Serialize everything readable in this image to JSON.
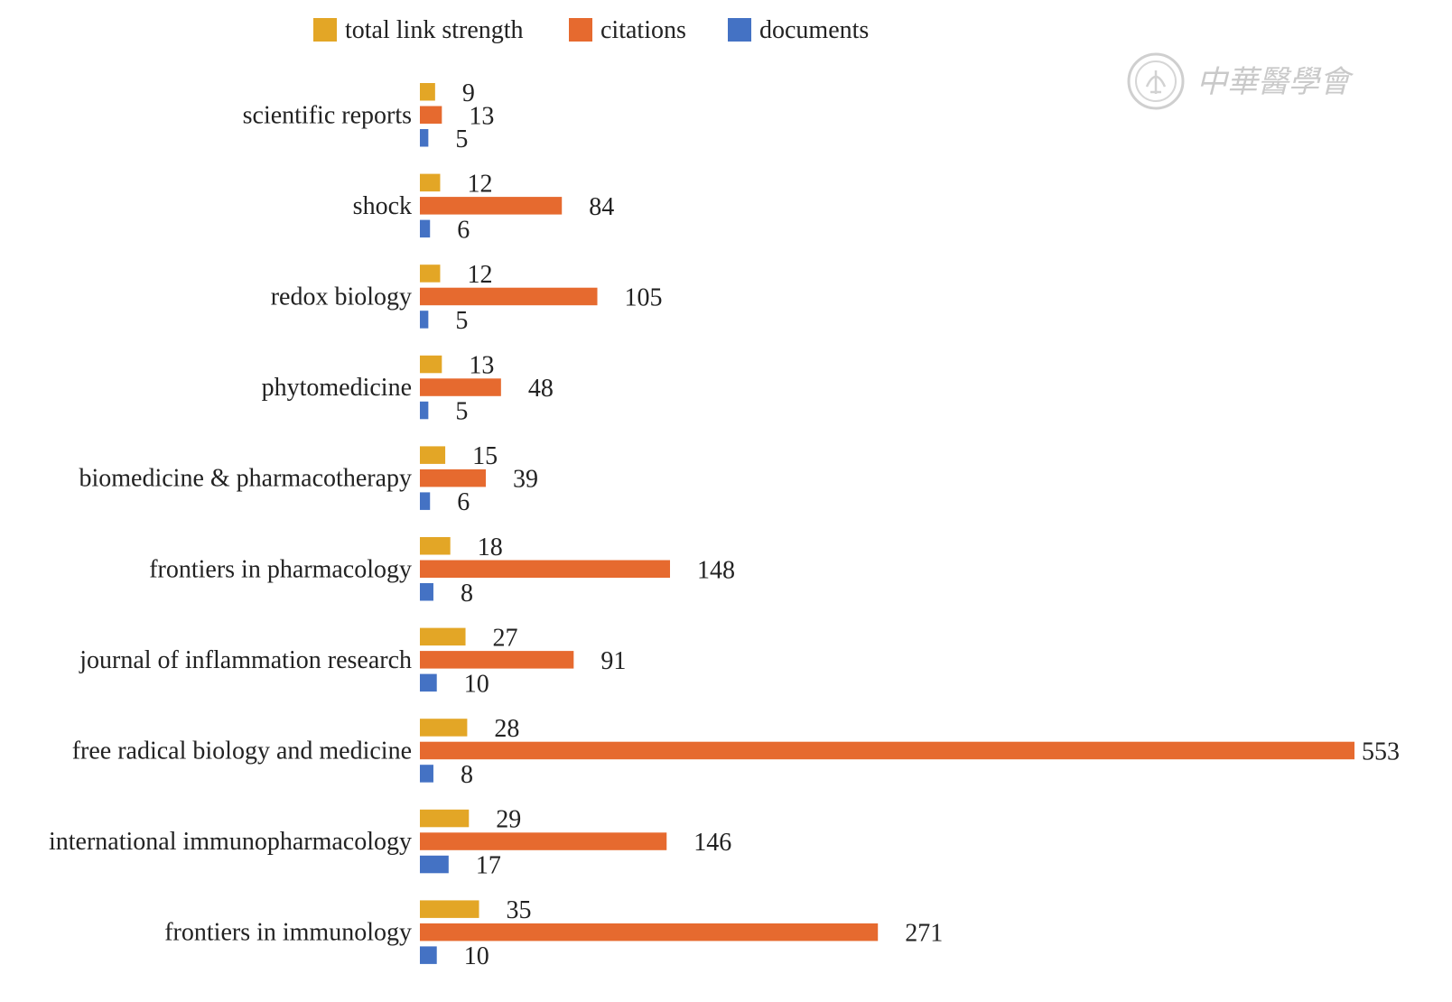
{
  "chart_data": {
    "type": "bar",
    "orientation": "horizontal",
    "title": "",
    "xlabel": "",
    "ylabel": "",
    "grid": false,
    "legend_position": "top",
    "categories": [
      "scientific reports",
      "shock",
      "redox biology",
      "phytomedicine",
      "biomedicine & pharmacotherapy",
      "frontiers in pharmacology",
      "journal of inflammation research",
      "free radical biology and medicine",
      "international immunopharmacology",
      "frontiers in immunology"
    ],
    "series": [
      {
        "name": "total link strength",
        "color": "#E3A626",
        "values": [
          9,
          12,
          12,
          13,
          15,
          18,
          27,
          28,
          29,
          35
        ]
      },
      {
        "name": "citations",
        "color": "#E66A2F",
        "values": [
          13,
          84,
          105,
          48,
          39,
          148,
          91,
          553,
          146,
          271
        ]
      },
      {
        "name": "documents",
        "color": "#4472C4",
        "values": [
          5,
          6,
          5,
          5,
          6,
          8,
          10,
          8,
          17,
          10
        ]
      }
    ],
    "xlim": [
      0,
      553
    ],
    "data_labels": true
  },
  "watermark": {
    "text": "中華醫學會",
    "color": "#c9c9c9"
  }
}
